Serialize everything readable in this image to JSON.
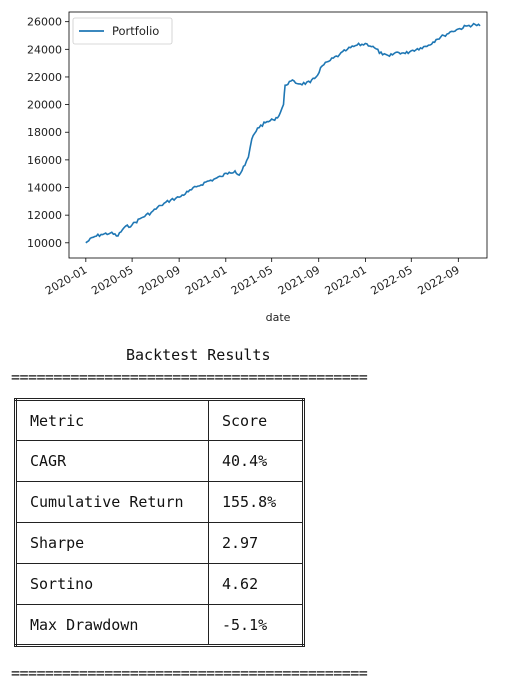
{
  "chart_data": {
    "type": "line",
    "title": "",
    "xlabel": "date",
    "ylabel": "",
    "legend": {
      "placement": "top-left",
      "entries": [
        "Portfolio"
      ]
    },
    "series_color": "#1f77b4",
    "x_ticks": [
      "2020-01",
      "2020-05",
      "2020-09",
      "2021-01",
      "2021-05",
      "2021-09",
      "2022-01",
      "2022-05",
      "2022-09"
    ],
    "y_ticks": [
      10000,
      12000,
      14000,
      16000,
      18000,
      20000,
      22000,
      24000,
      26000
    ],
    "ylim": [
      8900,
      26700
    ],
    "xlim": [
      "2019-11-18",
      "2022-11-15"
    ],
    "grid": false,
    "series": [
      {
        "name": "Portfolio",
        "points": [
          [
            "2020-01-01",
            10000
          ],
          [
            "2020-01-20",
            10400
          ],
          [
            "2020-02-10",
            10600
          ],
          [
            "2020-03-05",
            10700
          ],
          [
            "2020-03-25",
            10500
          ],
          [
            "2020-04-10",
            11100
          ],
          [
            "2020-05-01",
            11300
          ],
          [
            "2020-05-25",
            11800
          ],
          [
            "2020-06-20",
            12200
          ],
          [
            "2020-07-15",
            12700
          ],
          [
            "2020-08-10",
            13100
          ],
          [
            "2020-09-01",
            13300
          ],
          [
            "2020-09-25",
            13700
          ],
          [
            "2020-10-20",
            14100
          ],
          [
            "2020-11-10",
            14400
          ],
          [
            "2020-12-01",
            14600
          ],
          [
            "2020-12-20",
            14800
          ],
          [
            "2021-01-10",
            15100
          ],
          [
            "2021-01-25",
            15200
          ],
          [
            "2021-02-05",
            14900
          ],
          [
            "2021-02-20",
            15600
          ],
          [
            "2021-03-01",
            16200
          ],
          [
            "2021-03-10",
            17500
          ],
          [
            "2021-03-25",
            18300
          ],
          [
            "2021-04-15",
            18700
          ],
          [
            "2021-05-05",
            18900
          ],
          [
            "2021-05-20",
            19200
          ],
          [
            "2021-06-01",
            20000
          ],
          [
            "2021-06-05",
            21400
          ],
          [
            "2021-06-20",
            21700
          ],
          [
            "2021-07-15",
            21500
          ],
          [
            "2021-08-10",
            21600
          ],
          [
            "2021-08-25",
            22000
          ],
          [
            "2021-09-10",
            22800
          ],
          [
            "2021-10-01",
            23200
          ],
          [
            "2021-10-25",
            23600
          ],
          [
            "2021-11-15",
            24000
          ],
          [
            "2021-12-10",
            24300
          ],
          [
            "2022-01-05",
            24400
          ],
          [
            "2022-01-25",
            24100
          ],
          [
            "2022-02-15",
            23600
          ],
          [
            "2022-03-05",
            23500
          ],
          [
            "2022-03-25",
            23800
          ],
          [
            "2022-04-15",
            23700
          ],
          [
            "2022-05-01",
            23900
          ],
          [
            "2022-05-25",
            24100
          ],
          [
            "2022-06-15",
            24300
          ],
          [
            "2022-07-05",
            24700
          ],
          [
            "2022-07-25",
            25000
          ],
          [
            "2022-08-15",
            25300
          ],
          [
            "2022-09-05",
            25500
          ],
          [
            "2022-09-25",
            25700
          ],
          [
            "2022-10-15",
            25800
          ],
          [
            "2022-10-28",
            25700
          ]
        ]
      }
    ]
  },
  "results": {
    "title": "Backtest Results",
    "rule": "==========================================",
    "header": {
      "metric": "Metric",
      "score": "Score"
    },
    "rows": [
      {
        "metric": "CAGR",
        "score": "40.4%"
      },
      {
        "metric": "Cumulative Return",
        "score": "155.8%"
      },
      {
        "metric": "Sharpe",
        "score": "2.97"
      },
      {
        "metric": "Sortino",
        "score": "4.62"
      },
      {
        "metric": "Max Drawdown",
        "score": "-5.1%"
      }
    ]
  }
}
